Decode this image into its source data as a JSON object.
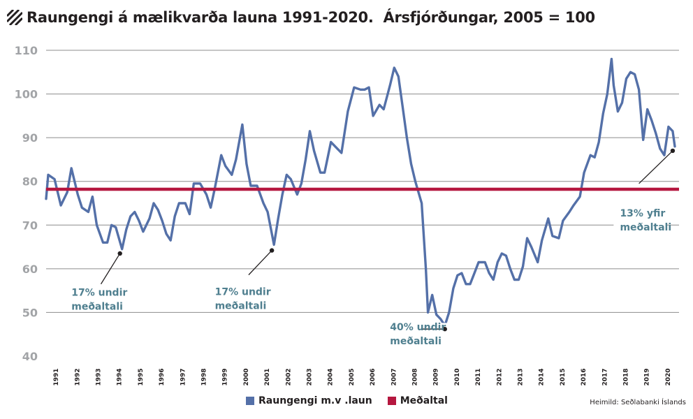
{
  "title": "Raungengi á mælikvarða launa 1991-2020.  Ársfjórðungar, 2005 = 100",
  "source": "Heimild: Seðlabanki Íslands",
  "colors": {
    "series": "#5470a8",
    "average": "#b5173f",
    "annotation": "#4f7f8f",
    "grid": "#8c8c8c",
    "axis_text": "#a2a4a7"
  },
  "chart_data": {
    "type": "line",
    "title": "Raungengi á mælikvarða launa 1991-2020.  Ársfjórðungar, 2005 = 100",
    "xlabel": "",
    "ylabel": "",
    "ylim": [
      40,
      110
    ],
    "yticks": [
      40,
      50,
      60,
      70,
      80,
      90,
      100,
      110
    ],
    "xlim": [
      1991,
      2021
    ],
    "xticks": [
      1991,
      1992,
      1993,
      1994,
      1995,
      1996,
      1997,
      1998,
      1999,
      2000,
      2001,
      2002,
      2003,
      2004,
      2005,
      2006,
      2007,
      2008,
      2009,
      2010,
      2011,
      2012,
      2013,
      2014,
      2015,
      2016,
      2017,
      2018,
      2019,
      2020
    ],
    "grid": true,
    "legend_position": "bottom",
    "series": [
      {
        "name": "Raungengi m.v .laun",
        "color": "#5470a8",
        "points": [
          [
            1991.0,
            76
          ],
          [
            1991.1,
            81.5
          ],
          [
            1991.4,
            80.5
          ],
          [
            1991.7,
            74.5
          ],
          [
            1992.0,
            77.5
          ],
          [
            1992.2,
            83
          ],
          [
            1992.5,
            77
          ],
          [
            1992.7,
            74
          ],
          [
            1993.0,
            73
          ],
          [
            1993.2,
            76.5
          ],
          [
            1993.4,
            70
          ],
          [
            1993.7,
            66
          ],
          [
            1993.9,
            66
          ],
          [
            1994.1,
            70
          ],
          [
            1994.3,
            69.5
          ],
          [
            1994.6,
            64.5
          ],
          [
            1994.8,
            69
          ],
          [
            1995.0,
            72
          ],
          [
            1995.2,
            73
          ],
          [
            1995.4,
            71
          ],
          [
            1995.6,
            68.5
          ],
          [
            1995.9,
            71.5
          ],
          [
            1996.1,
            75
          ],
          [
            1996.3,
            73.5
          ],
          [
            1996.5,
            71
          ],
          [
            1996.7,
            68
          ],
          [
            1996.9,
            66.5
          ],
          [
            1997.1,
            72
          ],
          [
            1997.3,
            75
          ],
          [
            1997.6,
            75
          ],
          [
            1997.8,
            72.5
          ],
          [
            1998.0,
            79.5
          ],
          [
            1998.3,
            79.5
          ],
          [
            1998.6,
            77
          ],
          [
            1998.8,
            74
          ],
          [
            1999.0,
            78.5
          ],
          [
            1999.3,
            86
          ],
          [
            1999.5,
            83.5
          ],
          [
            1999.8,
            81.5
          ],
          [
            2000.0,
            85
          ],
          [
            2000.3,
            93
          ],
          [
            2000.5,
            84
          ],
          [
            2000.7,
            79
          ],
          [
            2001.0,
            79
          ],
          [
            2001.3,
            75
          ],
          [
            2001.5,
            73
          ],
          [
            2001.8,
            65.5
          ],
          [
            2002.0,
            71.5
          ],
          [
            2002.2,
            77
          ],
          [
            2002.4,
            81.5
          ],
          [
            2002.6,
            80.5
          ],
          [
            2002.9,
            77
          ],
          [
            2003.1,
            79.5
          ],
          [
            2003.3,
            85
          ],
          [
            2003.5,
            91.5
          ],
          [
            2003.7,
            87
          ],
          [
            2004.0,
            82
          ],
          [
            2004.2,
            82
          ],
          [
            2004.5,
            89
          ],
          [
            2004.8,
            87.5
          ],
          [
            2005.0,
            86.5
          ],
          [
            2005.3,
            96
          ],
          [
            2005.6,
            101.5
          ],
          [
            2005.9,
            101
          ],
          [
            2006.1,
            101
          ],
          [
            2006.3,
            101.5
          ],
          [
            2006.5,
            95
          ],
          [
            2006.8,
            97.5
          ],
          [
            2007.0,
            96.5
          ],
          [
            2007.3,
            102
          ],
          [
            2007.5,
            106
          ],
          [
            2007.7,
            104
          ],
          [
            2007.9,
            97
          ],
          [
            2008.1,
            90
          ],
          [
            2008.3,
            84
          ],
          [
            2008.5,
            80
          ],
          [
            2008.8,
            75
          ],
          [
            2009.0,
            60
          ],
          [
            2009.1,
            50
          ],
          [
            2009.3,
            54
          ],
          [
            2009.5,
            49.5
          ],
          [
            2009.7,
            48.5
          ],
          [
            2009.9,
            47
          ],
          [
            2010.1,
            50
          ],
          [
            2010.3,
            55.5
          ],
          [
            2010.5,
            58.5
          ],
          [
            2010.7,
            59
          ],
          [
            2010.9,
            56.5
          ],
          [
            2011.1,
            56.5
          ],
          [
            2011.3,
            59
          ],
          [
            2011.5,
            61.5
          ],
          [
            2011.8,
            61.5
          ],
          [
            2012.0,
            59
          ],
          [
            2012.2,
            57.5
          ],
          [
            2012.4,
            61.5
          ],
          [
            2012.6,
            63.5
          ],
          [
            2012.8,
            63
          ],
          [
            2013.0,
            60
          ],
          [
            2013.2,
            57.5
          ],
          [
            2013.4,
            57.5
          ],
          [
            2013.6,
            60.5
          ],
          [
            2013.8,
            67
          ],
          [
            2014.0,
            65
          ],
          [
            2014.3,
            61.5
          ],
          [
            2014.5,
            66.5
          ],
          [
            2014.8,
            71.5
          ],
          [
            2015.0,
            67.5
          ],
          [
            2015.3,
            67
          ],
          [
            2015.5,
            71
          ],
          [
            2015.8,
            73
          ],
          [
            2016.0,
            74.5
          ],
          [
            2016.3,
            76.5
          ],
          [
            2016.5,
            82
          ],
          [
            2016.8,
            86
          ],
          [
            2017.0,
            85.5
          ],
          [
            2017.2,
            89
          ],
          [
            2017.4,
            95.5
          ],
          [
            2017.6,
            100
          ],
          [
            2017.8,
            108
          ],
          [
            2017.9,
            102
          ],
          [
            2018.1,
            96
          ],
          [
            2018.3,
            98
          ],
          [
            2018.5,
            103.5
          ],
          [
            2018.7,
            105
          ],
          [
            2018.9,
            104.5
          ],
          [
            2019.1,
            101
          ],
          [
            2019.3,
            89.5
          ],
          [
            2019.5,
            96.5
          ],
          [
            2019.7,
            94
          ],
          [
            2019.9,
            91
          ],
          [
            2020.1,
            87.5
          ],
          [
            2020.3,
            86
          ],
          [
            2020.5,
            92.5
          ],
          [
            2020.7,
            91.5
          ],
          [
            2020.8,
            88
          ]
        ]
      },
      {
        "name": "Meðaltal",
        "color": "#b5173f",
        "constant": 78.2
      }
    ],
    "annotations": [
      {
        "lines": [
          "17% undir",
          "meðaltali"
        ],
        "point": [
          1994.5,
          63.5
        ]
      },
      {
        "lines": [
          "17% undir",
          "meðaltali"
        ],
        "point": [
          2001.7,
          64.2
        ]
      },
      {
        "lines": [
          "40% undir",
          "meðaltali"
        ],
        "point": [
          2009.9,
          46.2
        ]
      },
      {
        "lines": [
          "13% yfir",
          "meðaltali"
        ],
        "point": [
          2020.7,
          87
        ]
      }
    ]
  }
}
